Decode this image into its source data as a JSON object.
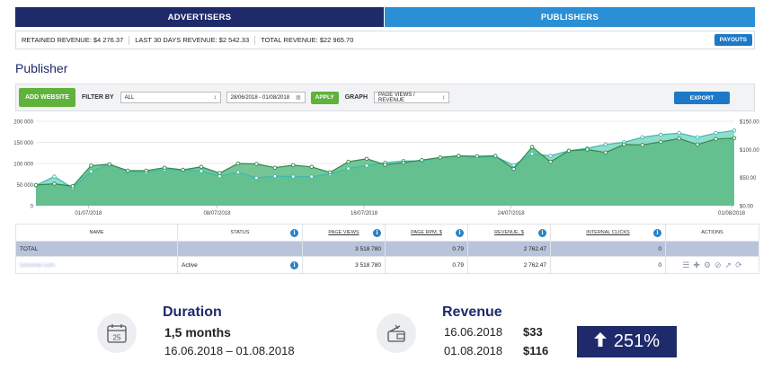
{
  "tabs": {
    "advertisers": "ADVERTISERS",
    "publishers": "PUBLISHERS"
  },
  "revenue_bar": {
    "retained": "RETAINED REVENUE: $4 276.37",
    "last30": "LAST 30 DAYS REVENUE: $2 542.33",
    "total": "TOTAL REVENUE: $22 965.70",
    "payouts_label": "PAYOUTS"
  },
  "page_title": "Publisher",
  "toolbar": {
    "add_website": "ADD WEBSITE",
    "filter_by": "FILTER BY",
    "filter_value": "ALL",
    "date_range": "28/06/2018 - 01/08/2018",
    "apply": "APPLY",
    "graph": "GRAPH",
    "graph_value": "PAGE VIEWS / REVENUE",
    "export": "EXPORT"
  },
  "colors": {
    "navy": "#1f2a6b",
    "blue": "#2b8fd6",
    "green": "#5fb23a",
    "dark_green_area": "#57b37a",
    "teal_area": "#7fd6c6"
  },
  "chart_data": {
    "type": "area",
    "y_left_ticks": [
      "0",
      "50 000",
      "100 000",
      "150 000",
      "200 000"
    ],
    "y_right_ticks": [
      "$0.00",
      "$50.00",
      "$100.00",
      "$150.00"
    ],
    "x_ticks": [
      "01/07/2018",
      "08/07/2018",
      "16/07/2018",
      "24/07/2018",
      "01/08/2018"
    ],
    "ylim_left": [
      0,
      200000
    ],
    "ylim_right": [
      0,
      150
    ],
    "series": [
      {
        "values": [
          48000,
          69000,
          42000,
          81000,
          98000,
          82000,
          79000,
          86000,
          84000,
          82000,
          70000,
          79000,
          66000,
          70000,
          69000,
          69000,
          75000,
          88000,
          95000,
          102000,
          106000,
          106000,
          114000,
          118000,
          114000,
          116000,
          96000,
          123000,
          118000,
          130000,
          136000,
          145000,
          150000,
          162000,
          168000,
          172000,
          162000,
          172000,
          178000
        ]
      },
      {
        "values": [
          49000,
          52000,
          46000,
          95000,
          98000,
          83000,
          83000,
          90000,
          85000,
          92000,
          77000,
          100000,
          99000,
          90000,
          96000,
          92000,
          79000,
          104000,
          111000,
          97000,
          102000,
          108000,
          114000,
          118000,
          117000,
          118000,
          87000,
          139000,
          104000,
          130000,
          133000,
          126000,
          145000,
          144000,
          151000,
          159000,
          145000,
          158000,
          160000
        ]
      }
    ]
  },
  "table": {
    "headers": [
      "NAME",
      "STATUS",
      "PAGE VIEWS",
      "PAGE RPM, $",
      "REVENUE, $",
      "INTERNAL CLICKS",
      "ACTIONS"
    ],
    "total_row": {
      "name": "TOTAL",
      "page_views": "3 518 780",
      "rpm": "0.79",
      "revenue": "2 762.47",
      "clicks": "0"
    },
    "row": {
      "name": "lumumer.com",
      "status": "Active",
      "page_views": "3 518 780",
      "rpm": "0.79",
      "revenue": "2 762.47",
      "clicks": "0"
    }
  },
  "duration": {
    "title": "Duration",
    "value": "1,5 months",
    "range": "16.06.2018 – 01.08.2018",
    "calendar_day": "25"
  },
  "revenue": {
    "title": "Revenue",
    "rows": [
      {
        "date": "16.06.2018",
        "amount": "$33"
      },
      {
        "date": "01.08.2018",
        "amount": "$116"
      }
    ],
    "change": "251%"
  }
}
